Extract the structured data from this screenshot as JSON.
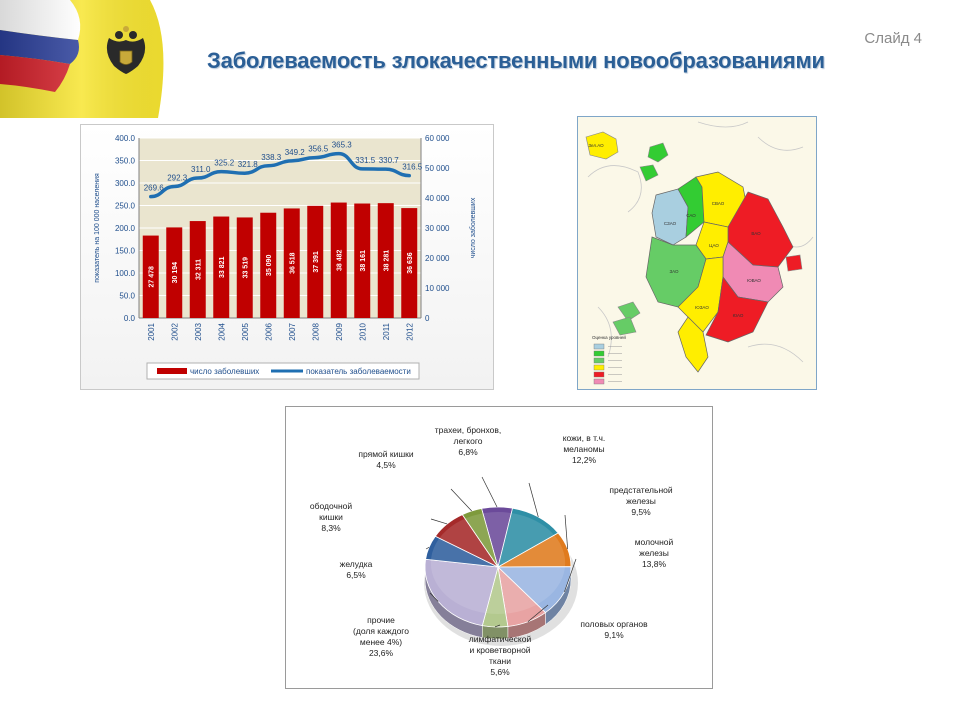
{
  "slide": {
    "number_label": "Слайд 4",
    "title": "Заболеваемость злокачественными новообразованиями"
  },
  "colors": {
    "bar": "#c00000",
    "line": "#1f6fb2",
    "title": "#2b5f96",
    "plot_bg": "#eae5cf"
  },
  "chart_data": [
    {
      "type": "bar",
      "categories": [
        "2001",
        "2002",
        "2003",
        "2004",
        "2005",
        "2006",
        "2007",
        "2008",
        "2009",
        "2010",
        "2011",
        "2012"
      ],
      "series": [
        {
          "name": "число заболевших",
          "type": "bar",
          "axis": "right",
          "values": [
            27478,
            30194,
            32311,
            33821,
            33519,
            35090,
            36518,
            37391,
            38482,
            38161,
            38281,
            36636
          ],
          "labels": [
            "27 478",
            "30 194",
            "32 311",
            "33 821",
            "33 519",
            "35 090",
            "36 518",
            "37 391",
            "38 482",
            "38 161",
            "38 281",
            "36 636"
          ]
        },
        {
          "name": "показатель заболеваемости",
          "type": "line",
          "axis": "left",
          "values": [
            269.6,
            292.3,
            311.0,
            325.2,
            321.8,
            338.3,
            349.2,
            356.5,
            365.3,
            331.5,
            330.7,
            316.5
          ],
          "labels": [
            "269.6",
            "292.3",
            "311.0",
            "325.2",
            "321.8",
            "338.3",
            "349.2",
            "356.5",
            "365.3",
            "331.5",
            "330.7",
            "316.5"
          ]
        }
      ],
      "ylabel": "показатель на 100 000 населения",
      "y2label": "число заболевших",
      "ylim": [
        0,
        400
      ],
      "y2lim": [
        0,
        60000
      ],
      "yticks": [
        "0.0",
        "50.0",
        "100.0",
        "150.0",
        "200.0",
        "250.0",
        "300.0",
        "350.0",
        "400.0"
      ],
      "y2ticks": [
        "0",
        "10 000",
        "20 000",
        "30 000",
        "40 000",
        "50 000",
        "60 000"
      ],
      "legend": "bottom",
      "grid": true
    },
    {
      "type": "pie",
      "slices": [
        {
          "name": "трахеи, бронхов, легкого",
          "label": "трахеи, бронхов,\nлегкого",
          "pct": "6,8%",
          "value": 6.8,
          "color": "#6b4a9a"
        },
        {
          "name": "кожи, в т.ч. меланомы",
          "label": "кожи, в т.ч.\nмеланомы",
          "pct": "12,2%",
          "value": 12.2,
          "color": "#2e8fa6"
        },
        {
          "name": "предстательной железы",
          "label": "предстательной\nжелезы",
          "pct": "9,5%",
          "value": 9.5,
          "color": "#e07b1e"
        },
        {
          "name": "молочной железы",
          "label": "молочной\nжелезы",
          "pct": "13,8%",
          "value": 13.8,
          "color": "#9ab6e2"
        },
        {
          "name": "половых органов",
          "label": "половых органов",
          "pct": "9,1%",
          "value": 9.1,
          "color": "#e8a3a3"
        },
        {
          "name": "лимфатической и кроветворной ткани",
          "label": "лимфатической\nи кроветворной\nткани",
          "pct": "5,6%",
          "value": 5.6,
          "color": "#b3c98e"
        },
        {
          "name": "прочие (доля каждого менее 4%)",
          "label": "прочие\n(доля каждого\nменее 4%)",
          "pct": "23,6%",
          "value": 23.6,
          "color": "#b9b0d4"
        },
        {
          "name": "желудка",
          "label": "желудка",
          "pct": "6,5%",
          "value": 6.5,
          "color": "#2f5f9e"
        },
        {
          "name": "ободочной кишки",
          "label": "ободочной\nкишки",
          "pct": "8,3%",
          "value": 8.3,
          "color": "#a52a2a"
        },
        {
          "name": "прямой кишки",
          "label": "прямой кишки",
          "pct": "4,5%",
          "value": 4.5,
          "color": "#7e9a3c"
        }
      ]
    }
  ],
  "map": {
    "district_labels": [
      "Зел.АО",
      "САО",
      "СЗАО",
      "СВАО",
      "ВАО",
      "ЦАО",
      "ЗАО",
      "ЮВАО",
      "ЮЗАО",
      "ЮАО"
    ],
    "legend_title": "Оценка уровней",
    "legend_colors": [
      "#a9cfe0",
      "#33cc33",
      "#66cc66",
      "#ffee00",
      "#ee1c25",
      "#f08ab4"
    ]
  }
}
